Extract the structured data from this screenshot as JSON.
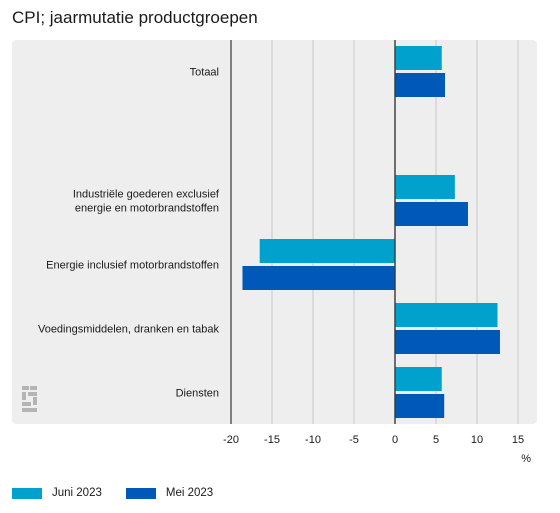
{
  "chart_data": {
    "type": "bar",
    "orientation": "horizontal",
    "title": "CPI; jaarmutatie productgroepen",
    "categories": [
      {
        "lines": [
          "Totaal"
        ]
      },
      {
        "lines": [
          "Industriële goederen exclusief",
          "energie en motorbrandstoffen"
        ]
      },
      {
        "lines": [
          "Energie inclusief motorbrandstoffen"
        ]
      },
      {
        "lines": [
          "Voedingsmiddelen, dranken en tabak"
        ]
      },
      {
        "lines": [
          "Diensten"
        ]
      }
    ],
    "series": [
      {
        "name": "Juni 2023",
        "color": "#00a1cd",
        "values": [
          5.7,
          7.3,
          -16.5,
          12.5,
          5.7
        ]
      },
      {
        "name": "Mei 2023",
        "color": "#0058b8",
        "values": [
          6.1,
          8.9,
          -18.6,
          12.8,
          6.0
        ]
      }
    ],
    "xlim": [
      -20,
      15
    ],
    "xticks": [
      "-20",
      "-15",
      "-10",
      "-5",
      "0",
      "5",
      "10",
      "15"
    ],
    "xtick_values": [
      -20,
      -15,
      -10,
      -5,
      0,
      5,
      10,
      15
    ],
    "xunit": "%",
    "grid": true,
    "legend_position": "bottom-left",
    "colors": {
      "panel_bg": "#eeeeee",
      "grid": "#c8c8c8",
      "zero_line": "#333333"
    },
    "logo": "cbs-logo-icon"
  }
}
